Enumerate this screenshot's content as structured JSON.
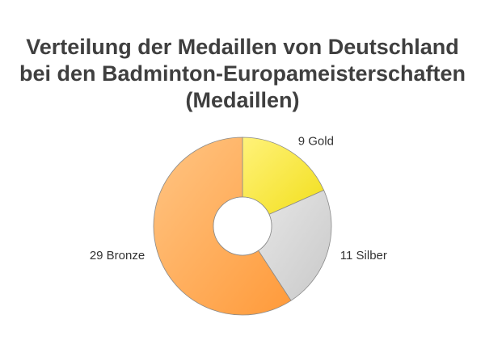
{
  "chart_data": {
    "type": "pie",
    "variant": "donut",
    "title_lines": [
      "Verteilung der Medaillen von Deutschland",
      "bei den Badminton-Europameisterschaften",
      "(Medaillen)"
    ],
    "slices": [
      {
        "category": "Gold",
        "value": 9,
        "label": "9 Gold",
        "color_start": "#fff27a",
        "color_end": "#f2df1c"
      },
      {
        "category": "Silber",
        "value": 11,
        "label": "11 Silber",
        "color_start": "#e6e6e6",
        "color_end": "#c9c9c9"
      },
      {
        "category": "Bronze",
        "value": 29,
        "label": "29 Bronze",
        "color_start": "#ffc584",
        "color_end": "#ff9a3a"
      }
    ],
    "start_angle_deg": 0,
    "direction": "clockwise",
    "legend": "none"
  }
}
